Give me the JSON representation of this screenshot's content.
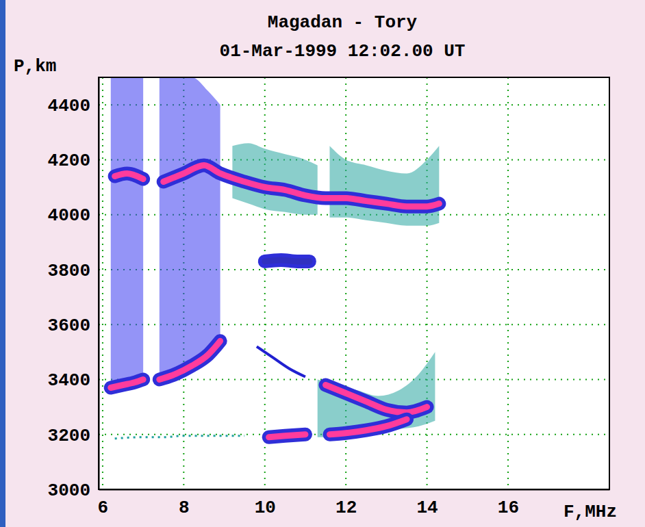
{
  "chart_data": {
    "type": "line",
    "title": "Magadan - Tory",
    "subtitle": "01-Mar-1999   12:02.00 UT",
    "x_label": "F,MHz",
    "y_label": "P,km",
    "xlim": [
      5.9,
      18.5
    ],
    "ylim": [
      3000,
      4500
    ],
    "xticks": [
      6,
      8,
      10,
      12,
      14,
      16
    ],
    "yticks": [
      3000,
      3200,
      3400,
      3600,
      3800,
      4000,
      4200,
      4400
    ],
    "grid": true,
    "series": [
      {
        "type": "area",
        "color": "#3c3cf0",
        "x": [
          6.2,
          6.5,
          6.8,
          7.0
        ],
        "values": [
          4500,
          4500,
          4500,
          4500
        ],
        "low": [
          3350,
          3360,
          3370,
          3380
        ]
      },
      {
        "type": "area",
        "color": "#3c3cf0",
        "x": [
          7.4,
          7.8,
          8.2,
          8.6,
          8.9
        ],
        "values": [
          4500,
          4500,
          4500,
          4450,
          4400
        ],
        "low": [
          3390,
          3410,
          3440,
          3480,
          3510
        ]
      },
      {
        "type": "area",
        "color": "#2aa6a0",
        "x": [
          9.2,
          9.6,
          10.0,
          10.5,
          11.0,
          11.3
        ],
        "values": [
          4250,
          4260,
          4240,
          4220,
          4200,
          4180
        ],
        "low": [
          4060,
          4040,
          4020,
          4010,
          4000,
          4000
        ]
      },
      {
        "type": "area",
        "color": "#2aa6a0",
        "x": [
          11.6,
          12.0,
          12.5,
          13.0,
          13.5,
          14.0,
          14.3
        ],
        "values": [
          4250,
          4200,
          4180,
          4160,
          4150,
          4200,
          4250
        ],
        "low": [
          3990,
          3990,
          3980,
          3970,
          3960,
          3960,
          3970
        ]
      },
      {
        "type": "area",
        "color": "#2aa6a0",
        "x": [
          11.3,
          11.8,
          12.3,
          12.8,
          13.3,
          13.8,
          14.2
        ],
        "values": [
          3400,
          3380,
          3360,
          3340,
          3360,
          3420,
          3500
        ],
        "low": [
          3190,
          3190,
          3200,
          3210,
          3220,
          3230,
          3250
        ]
      },
      {
        "type": "line",
        "line_style": "solid",
        "color": "#ff3c9c",
        "x": [
          6.3,
          6.6,
          7.0,
          7.2,
          7.5,
          8.0,
          8.5,
          8.9,
          9.5,
          10.0,
          10.5,
          11.0,
          11.5,
          12.0,
          12.5,
          13.0,
          13.5,
          14.0,
          14.3
        ],
        "values": [
          4140,
          4150,
          4130,
          null,
          4120,
          4150,
          4180,
          4150,
          4120,
          4100,
          4090,
          4070,
          4060,
          4060,
          4050,
          4040,
          4030,
          4030,
          4040
        ]
      },
      {
        "type": "line",
        "line_style": "solid",
        "color": "#ff3c9c",
        "x": [
          6.2,
          6.5,
          6.8,
          7.0,
          7.2,
          7.4,
          7.8,
          8.2,
          8.6,
          8.9
        ],
        "values": [
          3370,
          3380,
          3390,
          3400,
          null,
          3400,
          3420,
          3450,
          3490,
          3540
        ]
      },
      {
        "type": "line",
        "line_style": "solid",
        "color": "#ff3c9c",
        "x": [
          11.5,
          12.0,
          12.5,
          13.0,
          13.5,
          14.0
        ],
        "values": [
          3380,
          3350,
          3320,
          3290,
          3280,
          3300
        ]
      },
      {
        "type": "line",
        "line_style": "solid",
        "color": "#ff3c9c",
        "x": [
          10.1,
          10.5,
          11.0,
          11.3,
          11.6,
          12.0,
          12.5,
          13.0,
          13.5
        ],
        "values": [
          3190,
          3195,
          3200,
          null,
          3200,
          3205,
          3215,
          3230,
          3255
        ]
      },
      {
        "type": "line",
        "line_style": "thin",
        "color": "#2020d0",
        "x": [
          9.8,
          10.2,
          10.6,
          11.0
        ],
        "values": [
          3520,
          3480,
          3440,
          3410
        ]
      },
      {
        "type": "line",
        "line_style": "dotted",
        "color": "#20a0a0",
        "x": [
          6.3,
          7.0,
          7.5,
          8.0,
          8.5,
          9.0,
          9.5
        ],
        "values": [
          3185,
          3190,
          3190,
          3195,
          3195,
          3195,
          3195
        ]
      },
      {
        "type": "line",
        "line_style": "solid",
        "color": "#3030c0",
        "x": [
          10.0,
          10.4,
          10.8,
          11.1
        ],
        "values": [
          3830,
          3835,
          3830,
          3830
        ]
      }
    ]
  }
}
